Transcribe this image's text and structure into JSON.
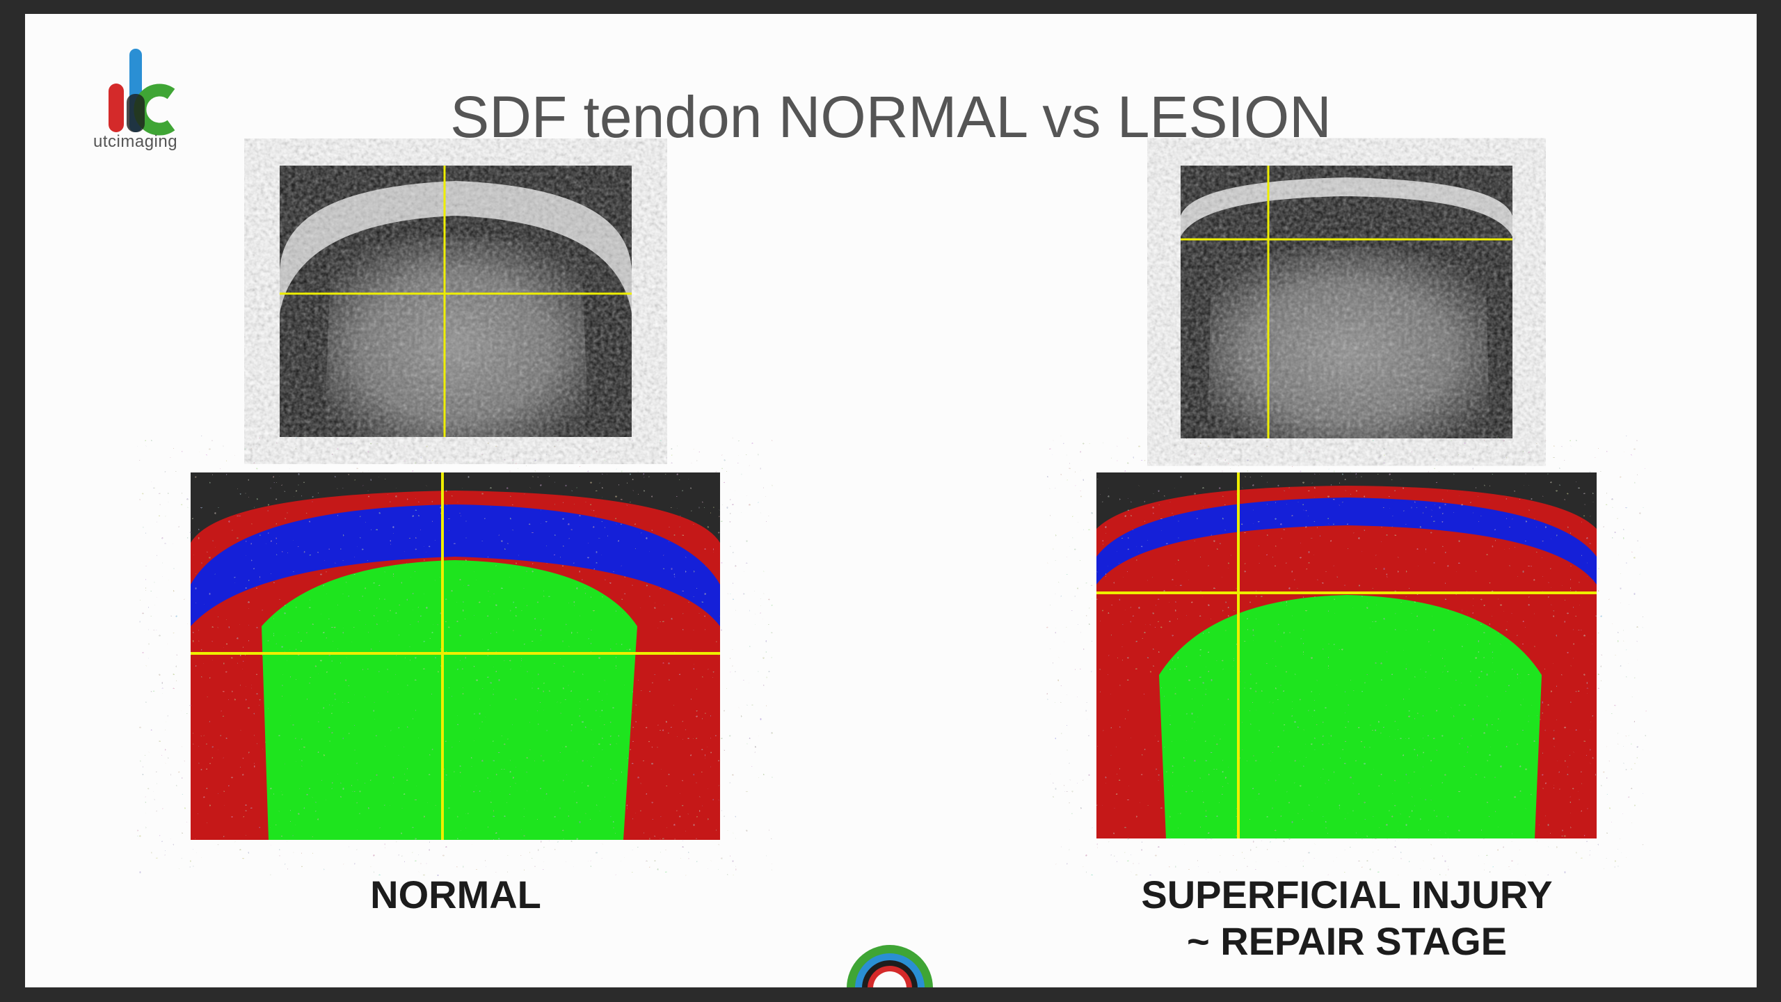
{
  "header": {
    "title": "SDF tendon NORMAL vs LESION",
    "logo_text": "utcimaging"
  },
  "panels": [
    {
      "label": "NORMAL"
    },
    {
      "label_lines": [
        "SUPERFICIAL INJURY",
        "~ REPAIR STAGE"
      ]
    }
  ]
}
